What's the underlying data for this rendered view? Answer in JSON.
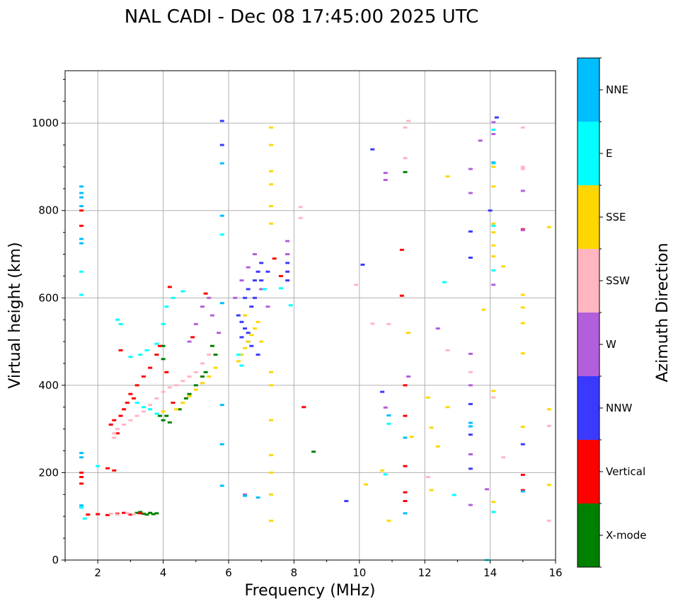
{
  "chart_data": {
    "type": "scatter",
    "title": "NAL CADI - Dec 08 17:45:00 2025 UTC",
    "xlabel": "Frequency (MHz)",
    "ylabel": "Virtual height (km)",
    "xlim": [
      1,
      16
    ],
    "ylim": [
      0,
      1120
    ],
    "xticks": [
      2,
      4,
      6,
      8,
      10,
      12,
      14,
      16
    ],
    "yticks": [
      0,
      200,
      400,
      600,
      800,
      1000
    ],
    "grid": true,
    "colorbar": {
      "label": "Azimuth Direction",
      "categories": [
        "X-mode",
        "Vertical",
        "NNW",
        "W",
        "SSW",
        "SSE",
        "E",
        "NNE"
      ],
      "colors": [
        "#008000",
        "#ff0000",
        "#3a3aff",
        "#b35fdb",
        "#ffb6c1",
        "#ffd700",
        "#00ffff",
        "#00bfff"
      ]
    },
    "series": [
      {
        "name": "X-mode",
        "points": [
          [
            3.2,
            108
          ],
          [
            3.4,
            106
          ],
          [
            3.6,
            108
          ],
          [
            3.8,
            107
          ],
          [
            3.5,
            104
          ],
          [
            3.3,
            110
          ],
          [
            3.7,
            105
          ],
          [
            4.0,
            320
          ],
          [
            4.1,
            330
          ],
          [
            4.0,
            460
          ],
          [
            4.0,
            490
          ],
          [
            4.5,
            345
          ],
          [
            4.7,
            370
          ],
          [
            5.3,
            430
          ],
          [
            5.5,
            490
          ],
          [
            5.6,
            470
          ],
          [
            8.6,
            248
          ],
          [
            11.4,
            888
          ],
          [
            3.9,
            330
          ],
          [
            4.2,
            315
          ],
          [
            4.8,
            380
          ],
          [
            5.0,
            400
          ],
          [
            5.2,
            420
          ]
        ]
      },
      {
        "name": "Vertical",
        "points": [
          [
            1.5,
            800
          ],
          [
            1.5,
            765
          ],
          [
            1.5,
            200
          ],
          [
            1.5,
            190
          ],
          [
            1.5,
            175
          ],
          [
            1.7,
            104
          ],
          [
            2.0,
            105
          ],
          [
            2.3,
            103
          ],
          [
            2.6,
            106
          ],
          [
            2.8,
            108
          ],
          [
            3.0,
            104
          ],
          [
            3.3,
            107
          ],
          [
            2.4,
            310
          ],
          [
            2.5,
            320
          ],
          [
            2.7,
            330
          ],
          [
            2.8,
            345
          ],
          [
            2.9,
            360
          ],
          [
            3.0,
            380
          ],
          [
            3.1,
            370
          ],
          [
            3.2,
            400
          ],
          [
            3.4,
            420
          ],
          [
            3.6,
            440
          ],
          [
            3.8,
            470
          ],
          [
            3.9,
            490
          ],
          [
            2.6,
            290
          ],
          [
            2.7,
            480
          ],
          [
            4.2,
            625
          ],
          [
            4.1,
            430
          ],
          [
            4.3,
            360
          ],
          [
            5.3,
            610
          ],
          [
            4.9,
            510
          ],
          [
            7.4,
            690
          ],
          [
            7.6,
            650
          ],
          [
            8.3,
            350
          ],
          [
            11.3,
            710
          ],
          [
            11.3,
            605
          ],
          [
            11.4,
            400
          ],
          [
            11.4,
            330
          ],
          [
            11.4,
            215
          ],
          [
            11.4,
            155
          ],
          [
            11.4,
            135
          ],
          [
            15.0,
            757
          ],
          [
            15.0,
            195
          ],
          [
            15.0,
            160
          ],
          [
            2.3,
            210
          ],
          [
            2.5,
            205
          ]
        ]
      },
      {
        "name": "NNW",
        "points": [
          [
            6.3,
            560
          ],
          [
            6.4,
            545
          ],
          [
            6.5,
            530
          ],
          [
            6.6,
            520
          ],
          [
            6.7,
            580
          ],
          [
            6.8,
            600
          ],
          [
            6.5,
            600
          ],
          [
            6.6,
            620
          ],
          [
            6.8,
            640
          ],
          [
            6.9,
            660
          ],
          [
            7.0,
            680
          ],
          [
            6.4,
            510
          ],
          [
            6.6,
            500
          ],
          [
            6.7,
            490
          ],
          [
            6.9,
            470
          ],
          [
            7.0,
            640
          ],
          [
            7.2,
            660
          ],
          [
            7.8,
            700
          ],
          [
            7.8,
            680
          ],
          [
            7.8,
            660
          ],
          [
            7.8,
            640
          ],
          [
            5.8,
            1005
          ],
          [
            5.8,
            950
          ],
          [
            10.4,
            940
          ],
          [
            10.1,
            676
          ],
          [
            10.7,
            385
          ],
          [
            13.4,
            752
          ],
          [
            13.4,
            692
          ],
          [
            13.4,
            357
          ],
          [
            13.4,
            287
          ],
          [
            13.4,
            209
          ],
          [
            14.2,
            1013
          ],
          [
            14.0,
            800
          ],
          [
            15.0,
            265
          ],
          [
            9.6,
            135
          ]
        ]
      },
      {
        "name": "W",
        "points": [
          [
            4.8,
            500
          ],
          [
            5.0,
            540
          ],
          [
            5.2,
            580
          ],
          [
            5.4,
            600
          ],
          [
            5.5,
            560
          ],
          [
            5.7,
            520
          ],
          [
            6.2,
            600
          ],
          [
            6.4,
            640
          ],
          [
            6.6,
            670
          ],
          [
            6.8,
            700
          ],
          [
            7.0,
            620
          ],
          [
            7.2,
            580
          ],
          [
            7.8,
            730
          ],
          [
            7.8,
            700
          ],
          [
            10.8,
            886
          ],
          [
            10.8,
            870
          ],
          [
            10.8,
            349
          ],
          [
            11.5,
            420
          ],
          [
            12.4,
            530
          ],
          [
            13.4,
            895
          ],
          [
            13.4,
            840
          ],
          [
            13.4,
            472
          ],
          [
            13.4,
            400
          ],
          [
            13.4,
            242
          ],
          [
            13.4,
            126
          ],
          [
            13.7,
            960
          ],
          [
            14.1,
            630
          ],
          [
            14.1,
            1002
          ],
          [
            14.1,
            975
          ],
          [
            15.0,
            845
          ],
          [
            15.0,
            755
          ],
          [
            13.9,
            162
          ],
          [
            6.5,
            150
          ]
        ]
      },
      {
        "name": "SSW",
        "points": [
          [
            2.5,
            290
          ],
          [
            2.6,
            300
          ],
          [
            2.8,
            310
          ],
          [
            3.0,
            320
          ],
          [
            3.2,
            330
          ],
          [
            3.4,
            340
          ],
          [
            3.6,
            355
          ],
          [
            3.8,
            370
          ],
          [
            4.0,
            385
          ],
          [
            4.2,
            395
          ],
          [
            4.4,
            400
          ],
          [
            4.6,
            410
          ],
          [
            4.8,
            420
          ],
          [
            5.0,
            430
          ],
          [
            5.2,
            450
          ],
          [
            5.4,
            470
          ],
          [
            2.5,
            280
          ],
          [
            2.4,
            106
          ],
          [
            2.6,
            104
          ],
          [
            2.9,
            107
          ],
          [
            3.1,
            105
          ],
          [
            8.2,
            808
          ],
          [
            8.2,
            783
          ],
          [
            9.9,
            630
          ],
          [
            10.4,
            541
          ],
          [
            10.9,
            540
          ],
          [
            11.5,
            1005
          ],
          [
            11.4,
            920
          ],
          [
            11.4,
            990
          ],
          [
            12.1,
            190
          ],
          [
            12.7,
            480
          ],
          [
            13.4,
            430
          ],
          [
            14.1,
            372
          ],
          [
            14.4,
            235
          ],
          [
            15.0,
            990
          ],
          [
            15.0,
            900
          ],
          [
            15.0,
            895
          ],
          [
            15.8,
            307
          ],
          [
            15.8,
            90
          ]
        ]
      },
      {
        "name": "SSE",
        "points": [
          [
            4.0,
            340
          ],
          [
            4.4,
            345
          ],
          [
            4.6,
            360
          ],
          [
            4.8,
            375
          ],
          [
            5.0,
            390
          ],
          [
            5.2,
            405
          ],
          [
            5.4,
            420
          ],
          [
            5.6,
            440
          ],
          [
            6.3,
            455
          ],
          [
            6.4,
            470
          ],
          [
            6.5,
            485
          ],
          [
            6.6,
            500
          ],
          [
            6.7,
            515
          ],
          [
            6.8,
            530
          ],
          [
            6.9,
            545
          ],
          [
            6.5,
            560
          ],
          [
            7.0,
            500
          ],
          [
            7.3,
            990
          ],
          [
            7.3,
            950
          ],
          [
            7.3,
            890
          ],
          [
            7.3,
            860
          ],
          [
            7.3,
            810
          ],
          [
            7.3,
            770
          ],
          [
            7.3,
            430
          ],
          [
            7.3,
            400
          ],
          [
            7.3,
            320
          ],
          [
            7.3,
            240
          ],
          [
            7.3,
            200
          ],
          [
            7.3,
            150
          ],
          [
            7.3,
            90
          ],
          [
            10.2,
            173
          ],
          [
            10.7,
            205
          ],
          [
            10.9,
            90
          ],
          [
            11.5,
            520
          ],
          [
            11.6,
            282
          ],
          [
            12.2,
            160
          ],
          [
            12.2,
            303
          ],
          [
            12.1,
            372
          ],
          [
            12.4,
            260
          ],
          [
            12.7,
            878
          ],
          [
            12.7,
            350
          ],
          [
            13.8,
            573
          ],
          [
            14.1,
            900
          ],
          [
            14.1,
            855
          ],
          [
            14.1,
            770
          ],
          [
            14.1,
            750
          ],
          [
            14.1,
            720
          ],
          [
            14.1,
            695
          ],
          [
            14.1,
            387
          ],
          [
            14.1,
            133
          ],
          [
            14.4,
            672
          ],
          [
            15.0,
            607
          ],
          [
            15.0,
            578
          ],
          [
            15.0,
            542
          ],
          [
            15.0,
            473
          ],
          [
            15.0,
            305
          ],
          [
            15.8,
            762
          ],
          [
            15.8,
            345
          ],
          [
            15.8,
            172
          ]
        ]
      },
      {
        "name": "E",
        "points": [
          [
            1.5,
            660
          ],
          [
            1.5,
            607
          ],
          [
            1.5,
            120
          ],
          [
            1.6,
            95
          ],
          [
            2.0,
            215
          ],
          [
            2.6,
            550
          ],
          [
            2.7,
            540
          ],
          [
            3.0,
            465
          ],
          [
            3.3,
            470
          ],
          [
            3.5,
            480
          ],
          [
            3.8,
            495
          ],
          [
            4.0,
            540
          ],
          [
            4.1,
            580
          ],
          [
            4.3,
            600
          ],
          [
            4.6,
            615
          ],
          [
            3.2,
            360
          ],
          [
            3.4,
            350
          ],
          [
            3.6,
            345
          ],
          [
            3.8,
            335
          ],
          [
            6.3,
            470
          ],
          [
            6.4,
            445
          ],
          [
            7.1,
            620
          ],
          [
            7.6,
            622
          ],
          [
            7.9,
            583
          ],
          [
            5.8,
            745
          ],
          [
            12.6,
            636
          ],
          [
            12.9,
            149
          ],
          [
            13.9,
            0
          ],
          [
            14.1,
            985
          ],
          [
            14.1,
            908
          ],
          [
            14.1,
            765
          ],
          [
            14.1,
            663
          ],
          [
            14.1,
            110
          ],
          [
            10.8,
            196
          ],
          [
            10.9,
            312
          ]
        ]
      },
      {
        "name": "NNE",
        "points": [
          [
            1.5,
            855
          ],
          [
            1.5,
            840
          ],
          [
            1.5,
            830
          ],
          [
            1.5,
            810
          ],
          [
            1.5,
            735
          ],
          [
            1.5,
            725
          ],
          [
            1.5,
            245
          ],
          [
            1.5,
            235
          ],
          [
            1.5,
            125
          ],
          [
            5.8,
            908
          ],
          [
            5.8,
            788
          ],
          [
            5.8,
            588
          ],
          [
            5.8,
            355
          ],
          [
            5.8,
            265
          ],
          [
            5.8,
            170
          ],
          [
            6.5,
            147
          ],
          [
            6.9,
            143
          ],
          [
            10.9,
            331
          ],
          [
            11.4,
            280
          ],
          [
            11.4,
            107
          ],
          [
            13.4,
            314
          ],
          [
            13.4,
            306
          ],
          [
            14.1,
            910
          ],
          [
            15.0,
            157
          ]
        ]
      }
    ]
  }
}
